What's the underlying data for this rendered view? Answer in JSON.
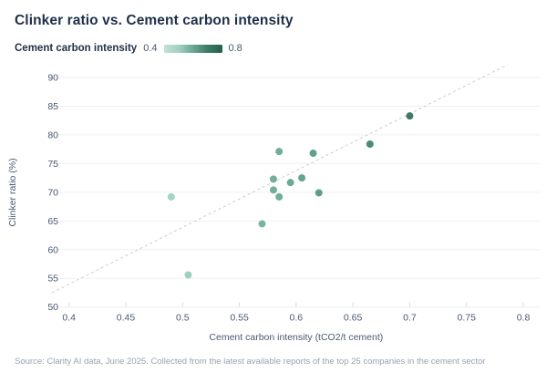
{
  "title": "Clinker ratio vs. Cement carbon intensity",
  "legend": {
    "label": "Cement carbon intensity",
    "min": "0.4",
    "max": "0.8"
  },
  "footer": "Source: Clarity AI data, June 2025. Collected from the latest available reports of the top 25 companies in the cement sector",
  "colors": {
    "title_text": "#1e3048",
    "axis_text": "#4a5a72",
    "gridline": "#eef0f2",
    "tick_mark": "#d8dce3",
    "trend_line": "#c8ccd8",
    "footer_text": "#98a1b3",
    "background": "#ffffff"
  },
  "chart_data": {
    "type": "scatter",
    "title": "Clinker ratio vs. Cement carbon intensity",
    "xlabel": "Cement carbon intensity (tCO2/t cement)",
    "ylabel": "Clinker ratio (%)",
    "xlim": [
      0.4,
      0.8
    ],
    "ylim": [
      50,
      90
    ],
    "x_ticks": [
      0.4,
      0.45,
      0.5,
      0.55,
      0.6,
      0.65,
      0.7,
      0.75,
      0.8
    ],
    "y_ticks": [
      50,
      55,
      60,
      65,
      70,
      75,
      80,
      85,
      90
    ],
    "grid": "horizontal",
    "legend_position": "top-left",
    "color_scale": {
      "label": "Cement carbon intensity",
      "domain": [
        0.4,
        0.8
      ],
      "anchors": [
        {
          "v": 0.4,
          "c": "#c2e2d6"
        },
        {
          "v": 0.5,
          "c": "#a2d1c1"
        },
        {
          "v": 0.6,
          "c": "#68a78f"
        },
        {
          "v": 0.7,
          "c": "#3c7a65"
        },
        {
          "v": 0.8,
          "c": "#255f4c"
        }
      ]
    },
    "points": [
      {
        "x": 0.49,
        "y": 69.2
      },
      {
        "x": 0.505,
        "y": 55.6
      },
      {
        "x": 0.57,
        "y": 64.5
      },
      {
        "x": 0.58,
        "y": 70.4
      },
      {
        "x": 0.58,
        "y": 72.3
      },
      {
        "x": 0.585,
        "y": 69.2
      },
      {
        "x": 0.585,
        "y": 77.1
      },
      {
        "x": 0.595,
        "y": 71.7
      },
      {
        "x": 0.605,
        "y": 72.5
      },
      {
        "x": 0.615,
        "y": 76.8
      },
      {
        "x": 0.62,
        "y": 69.9
      },
      {
        "x": 0.665,
        "y": 78.4
      },
      {
        "x": 0.7,
        "y": 83.3
      }
    ],
    "trend_line": {
      "style": "dashed",
      "x1": 0.385,
      "y1": 52.5,
      "x2": 0.786,
      "y2": 92.2
    }
  }
}
